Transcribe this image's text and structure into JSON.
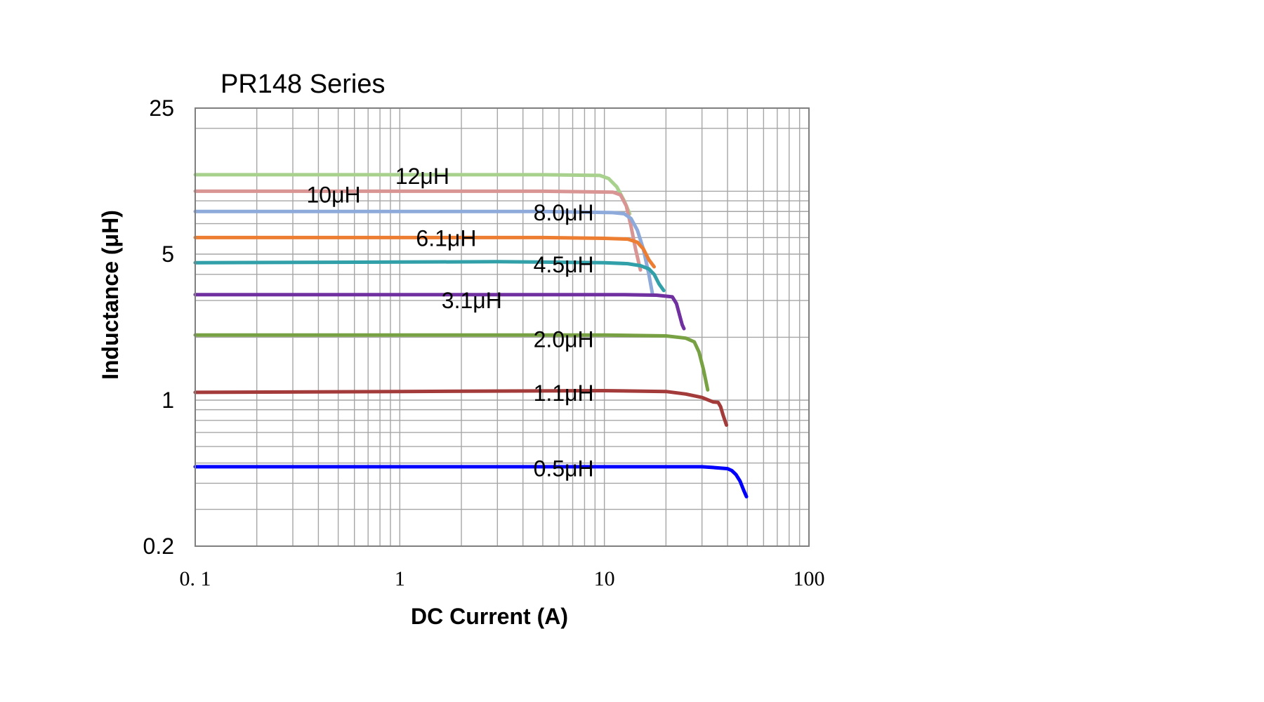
{
  "chart_data": {
    "type": "line",
    "title": "PR148 Series",
    "xlabel": "DC Current (A)",
    "ylabel": "Inductance (μH)",
    "x_scale": "log",
    "y_scale": "log",
    "xlim": [
      0.1,
      100
    ],
    "ylim": [
      0.2,
      25
    ],
    "x_ticks": [
      {
        "value": 0.1,
        "label": "0. 1"
      },
      {
        "value": 1,
        "label": "1"
      },
      {
        "value": 10,
        "label": "10"
      },
      {
        "value": 100,
        "label": "100"
      }
    ],
    "y_ticks": [
      {
        "value": 25,
        "label": "25"
      },
      {
        "value": 5,
        "label": "5"
      },
      {
        "value": 1,
        "label": "1"
      },
      {
        "value": 0.2,
        "label": "0.2"
      }
    ],
    "grid": true,
    "series": [
      {
        "name": "12μH",
        "color": "#a9d18e",
        "label_pos": {
          "x": 0.95,
          "y": 11.8
        },
        "points": [
          [
            0.1,
            12.0
          ],
          [
            1,
            12.0
          ],
          [
            5,
            12.0
          ],
          [
            9.5,
            11.9
          ],
          [
            10.5,
            11.5
          ],
          [
            11.5,
            10.5
          ],
          [
            12.5,
            9.0
          ],
          [
            13.3,
            7.8
          ]
        ]
      },
      {
        "name": "10μH",
        "color": "#d99594",
        "label_pos": {
          "x": 0.35,
          "y": 9.6
        },
        "points": [
          [
            0.1,
            10.0
          ],
          [
            1,
            10.0
          ],
          [
            5,
            10.0
          ],
          [
            11,
            9.9
          ],
          [
            12,
            9.6
          ],
          [
            12.8,
            8.5
          ],
          [
            13.5,
            6.8
          ],
          [
            14.2,
            5.3
          ],
          [
            15,
            4.2
          ]
        ]
      },
      {
        "name": "8.0μH",
        "color": "#8eaadb",
        "label_pos": {
          "x": 4.5,
          "y": 7.9
        },
        "points": [
          [
            0.1,
            8.0
          ],
          [
            1,
            8.0
          ],
          [
            5,
            8.0
          ],
          [
            11,
            7.9
          ],
          [
            12.5,
            7.8
          ],
          [
            13.5,
            7.4
          ],
          [
            14.5,
            6.5
          ],
          [
            15.5,
            5.3
          ],
          [
            16.5,
            4.0
          ],
          [
            17.2,
            3.2
          ]
        ]
      },
      {
        "name": "6.1μH",
        "color": "#ed7d31",
        "label_pos": {
          "x": 1.2,
          "y": 5.95
        },
        "points": [
          [
            0.1,
            6.0
          ],
          [
            1,
            6.0
          ],
          [
            5,
            6.0
          ],
          [
            10,
            5.95
          ],
          [
            13,
            5.9
          ],
          [
            14.5,
            5.7
          ],
          [
            15.5,
            5.3
          ],
          [
            16.5,
            4.7
          ],
          [
            17.5,
            4.35
          ]
        ]
      },
      {
        "name": "4.5μH",
        "color": "#31a0a8",
        "label_pos": {
          "x": 4.5,
          "y": 4.45
        },
        "points": [
          [
            0.1,
            4.55
          ],
          [
            1,
            4.58
          ],
          [
            3,
            4.6
          ],
          [
            10,
            4.55
          ],
          [
            13,
            4.5
          ],
          [
            15,
            4.4
          ],
          [
            16.5,
            4.25
          ],
          [
            17.5,
            4.0
          ],
          [
            18.5,
            3.6
          ],
          [
            19.5,
            3.35
          ]
        ]
      },
      {
        "name": "3.1μH",
        "color": "#7030a0",
        "label_pos": {
          "x": 1.6,
          "y": 3.0
        },
        "points": [
          [
            0.1,
            3.2
          ],
          [
            1,
            3.2
          ],
          [
            5,
            3.2
          ],
          [
            12,
            3.2
          ],
          [
            18,
            3.18
          ],
          [
            21.5,
            3.12
          ],
          [
            22.5,
            2.9
          ],
          [
            23.2,
            2.6
          ],
          [
            24,
            2.3
          ],
          [
            24.5,
            2.2
          ]
        ]
      },
      {
        "name": "2.0μH",
        "color": "#77a142",
        "label_pos": {
          "x": 4.5,
          "y": 1.95
        },
        "points": [
          [
            0.1,
            2.05
          ],
          [
            1,
            2.05
          ],
          [
            5,
            2.05
          ],
          [
            10,
            2.05
          ],
          [
            20,
            2.03
          ],
          [
            25,
            1.98
          ],
          [
            27.5,
            1.9
          ],
          [
            29,
            1.7
          ],
          [
            30.5,
            1.4
          ],
          [
            32,
            1.12
          ]
        ]
      },
      {
        "name": "1.1μH",
        "color": "#a33b3a",
        "label_pos": {
          "x": 4.5,
          "y": 1.08
        },
        "points": [
          [
            0.1,
            1.09
          ],
          [
            1,
            1.1
          ],
          [
            10,
            1.11
          ],
          [
            20,
            1.1
          ],
          [
            25,
            1.07
          ],
          [
            30,
            1.03
          ],
          [
            34,
            0.98
          ],
          [
            36,
            0.975
          ],
          [
            37,
            0.93
          ],
          [
            38,
            0.85
          ],
          [
            39.5,
            0.76
          ]
        ]
      },
      {
        "name": "0.5μH",
        "color": "#0000ff",
        "label_pos": {
          "x": 4.5,
          "y": 0.47
        },
        "points": [
          [
            0.1,
            0.48
          ],
          [
            1,
            0.48
          ],
          [
            10,
            0.48
          ],
          [
            20,
            0.48
          ],
          [
            30,
            0.48
          ],
          [
            35,
            0.475
          ],
          [
            40,
            0.47
          ],
          [
            42,
            0.46
          ],
          [
            44,
            0.44
          ],
          [
            46,
            0.41
          ],
          [
            48,
            0.37
          ],
          [
            49.5,
            0.345
          ]
        ]
      }
    ]
  }
}
